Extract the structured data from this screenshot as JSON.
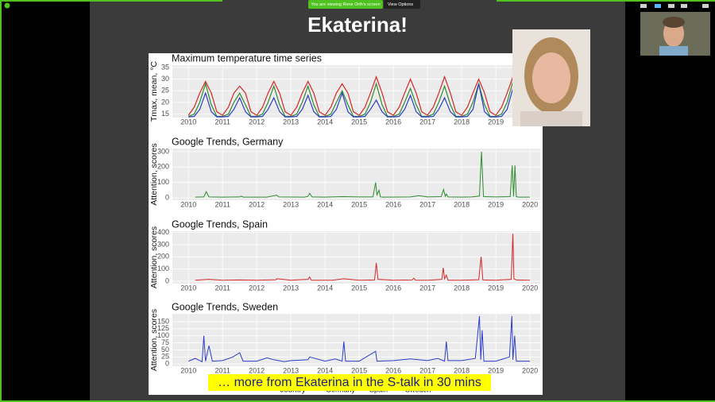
{
  "zoom": {
    "banner": "You are viewing Rene Orth's screen",
    "view_options": "View Options"
  },
  "slide": {
    "title": "Ekaterina!",
    "caption": "… more from Ekaterina in the S-talk in 30 mins"
  },
  "chart_data": [
    {
      "type": "line",
      "title": "Maximum temperature time series",
      "y_label": "Tmax, mean, °C",
      "legend_title": "country",
      "x": [
        2010.0,
        2010.17,
        2010.33,
        2010.5,
        2010.67,
        2010.83,
        2011.0,
        2011.17,
        2011.33,
        2011.5,
        2011.67,
        2011.83,
        2012.0,
        2012.17,
        2012.33,
        2012.5,
        2012.67,
        2012.83,
        2013.0,
        2013.17,
        2013.33,
        2013.5,
        2013.67,
        2013.83,
        2014.0,
        2014.17,
        2014.33,
        2014.5,
        2014.67,
        2014.83,
        2015.0,
        2015.17,
        2015.33,
        2015.5,
        2015.67,
        2015.83,
        2016.0,
        2016.17,
        2016.33,
        2016.5,
        2016.67,
        2016.83,
        2017.0,
        2017.17,
        2017.33,
        2017.5,
        2017.67,
        2017.83,
        2018.0,
        2018.17,
        2018.33,
        2018.5,
        2018.67,
        2018.83,
        2019.0,
        2019.17,
        2019.33,
        2019.5,
        2019.67,
        2019.83
      ],
      "series": [
        {
          "name": "Germany",
          "color": "#2e8b2e",
          "values": [
            14,
            15,
            20,
            28,
            19,
            14,
            14,
            15,
            20,
            24,
            19,
            14,
            14,
            15,
            20,
            27,
            19,
            14,
            14,
            15,
            20,
            27,
            19,
            14,
            14,
            15,
            20,
            25,
            19,
            14,
            14,
            15,
            20,
            28,
            19,
            14,
            14,
            15,
            20,
            26,
            19,
            14,
            14,
            15,
            20,
            27,
            19,
            14,
            14,
            15,
            20,
            28,
            19,
            14,
            14,
            15,
            20,
            29,
            19,
            14
          ]
        },
        {
          "name": "Spain",
          "color": "#d62728",
          "values": [
            14.5,
            18,
            24,
            29,
            24,
            16,
            14.5,
            18,
            24,
            27,
            24,
            16,
            14.5,
            18,
            24,
            29,
            24,
            16,
            14.5,
            18,
            24,
            29,
            24,
            16,
            14.5,
            18,
            24,
            28,
            24,
            16,
            14.5,
            18,
            24,
            31,
            24,
            16,
            14.5,
            18,
            24,
            30,
            24,
            16,
            14.5,
            18,
            24,
            31,
            24,
            16,
            14.5,
            18,
            24,
            30,
            24,
            16,
            14.5,
            18,
            24,
            31,
            24,
            16
          ]
        },
        {
          "name": "Sweden",
          "color": "#2c3ec9",
          "values": [
            13.8,
            14,
            17,
            24,
            16,
            13.8,
            13.8,
            14,
            17,
            22,
            16,
            13.8,
            13.8,
            14,
            17,
            22,
            16,
            13.8,
            13.8,
            14,
            17,
            23,
            16,
            13.8,
            13.8,
            14,
            17,
            24,
            16,
            13.8,
            13.8,
            14,
            17,
            21,
            16,
            13.8,
            13.8,
            14,
            17,
            23,
            16,
            13.8,
            13.8,
            14,
            17,
            22,
            16,
            13.8,
            13.8,
            14,
            17,
            28,
            16,
            13.8,
            13.8,
            14,
            17,
            26,
            16,
            13.8
          ]
        }
      ],
      "xlim": [
        2009.53,
        2020.3
      ],
      "ylim": [
        13.5,
        36
      ],
      "xticks": [
        2010,
        2011,
        2012,
        2013,
        2014,
        2015,
        2016,
        2017,
        2018,
        2019
      ],
      "yticks": [
        15,
        20,
        25,
        30,
        35
      ],
      "grid": true
    },
    {
      "type": "line",
      "title": "Google Trends, Germany",
      "y_label": "Attention, scores",
      "color": "#2e8b2e",
      "x": [
        2010.2,
        2010.45,
        2010.52,
        2010.6,
        2011.0,
        2011.5,
        2011.55,
        2011.6,
        2012.3,
        2012.58,
        2012.65,
        2013.4,
        2013.5,
        2013.55,
        2013.62,
        2014.0,
        2014.5,
        2015.0,
        2015.4,
        2015.48,
        2015.52,
        2015.58,
        2015.62,
        2015.7,
        2016.5,
        2016.75,
        2017.0,
        2017.4,
        2017.47,
        2017.52,
        2017.55,
        2017.6,
        2018.0,
        2018.3,
        2018.52,
        2018.58,
        2018.64,
        2019.0,
        2019.42,
        2019.48,
        2019.52,
        2019.56,
        2019.6,
        2019.66,
        2020.0
      ],
      "values": [
        5,
        6,
        40,
        6,
        5,
        6,
        12,
        5,
        5,
        18,
        6,
        5,
        10,
        30,
        6,
        5,
        8,
        6,
        6,
        100,
        20,
        50,
        6,
        5,
        6,
        15,
        6,
        8,
        55,
        10,
        25,
        6,
        5,
        6,
        12,
        300,
        8,
        6,
        8,
        210,
        10,
        210,
        8,
        5,
        5
      ],
      "xlim": [
        2009.53,
        2020.3
      ],
      "ylim": [
        -15,
        320
      ],
      "xticks": [
        2010,
        2011,
        2012,
        2013,
        2014,
        2015,
        2016,
        2017,
        2018,
        2019,
        2020
      ],
      "yticks": [
        0,
        100,
        200,
        300
      ],
      "grid": true
    },
    {
      "type": "line",
      "title": "Google Trends, Spain",
      "y_label": "Attention, scores",
      "color": "#d62728",
      "x": [
        2010.2,
        2010.6,
        2011.0,
        2011.5,
        2012.0,
        2012.55,
        2012.6,
        2013.0,
        2013.5,
        2013.55,
        2013.6,
        2014.2,
        2014.55,
        2015.0,
        2015.45,
        2015.5,
        2015.55,
        2016.0,
        2016.55,
        2016.6,
        2016.65,
        2017.0,
        2017.42,
        2017.46,
        2017.5,
        2017.55,
        2017.6,
        2018.0,
        2018.5,
        2018.57,
        2018.62,
        2019.0,
        2019.45,
        2019.5,
        2019.53,
        2019.6,
        2020.0
      ],
      "values": [
        8,
        15,
        8,
        10,
        8,
        12,
        20,
        8,
        15,
        35,
        8,
        8,
        20,
        8,
        10,
        150,
        15,
        8,
        10,
        25,
        8,
        8,
        15,
        110,
        20,
        50,
        8,
        8,
        12,
        200,
        10,
        8,
        15,
        390,
        20,
        10,
        8
      ],
      "xlim": [
        2009.53,
        2020.3
      ],
      "ylim": [
        -20,
        410
      ],
      "xticks": [
        2010,
        2011,
        2012,
        2013,
        2014,
        2015,
        2016,
        2017,
        2018,
        2019,
        2020
      ],
      "yticks": [
        0,
        100,
        200,
        300,
        400
      ],
      "grid": true
    },
    {
      "type": "line",
      "title": "Google Trends, Sweden",
      "y_label": "Attention, scores",
      "color": "#2c3ec9",
      "x": [
        2010.0,
        2010.2,
        2010.4,
        2010.45,
        2010.5,
        2010.6,
        2010.7,
        2011.0,
        2011.3,
        2011.5,
        2011.6,
        2012.0,
        2012.3,
        2012.5,
        2012.8,
        2013.0,
        2013.5,
        2013.55,
        2014.0,
        2014.3,
        2014.5,
        2014.55,
        2014.6,
        2015.0,
        2015.48,
        2015.52,
        2016.0,
        2016.5,
        2017.0,
        2017.3,
        2017.5,
        2017.55,
        2017.6,
        2018.0,
        2018.4,
        2018.52,
        2018.56,
        2018.6,
        2018.65,
        2019.0,
        2019.4,
        2019.47,
        2019.5,
        2019.55,
        2019.6,
        2020.0
      ],
      "values": [
        10,
        20,
        8,
        100,
        10,
        65,
        10,
        12,
        25,
        40,
        10,
        10,
        22,
        15,
        8,
        12,
        15,
        25,
        10,
        18,
        10,
        80,
        10,
        10,
        45,
        10,
        12,
        18,
        12,
        20,
        10,
        80,
        12,
        12,
        20,
        170,
        15,
        120,
        10,
        10,
        25,
        170,
        15,
        100,
        10,
        10
      ],
      "xlim": [
        2009.53,
        2020.3
      ],
      "ylim": [
        -8,
        178
      ],
      "xticks": [
        2010,
        2011,
        2012,
        2013,
        2014,
        2015,
        2016,
        2017,
        2018,
        2019,
        2020
      ],
      "yticks": [
        0,
        25,
        50,
        75,
        100,
        125,
        150
      ],
      "grid": true
    }
  ]
}
